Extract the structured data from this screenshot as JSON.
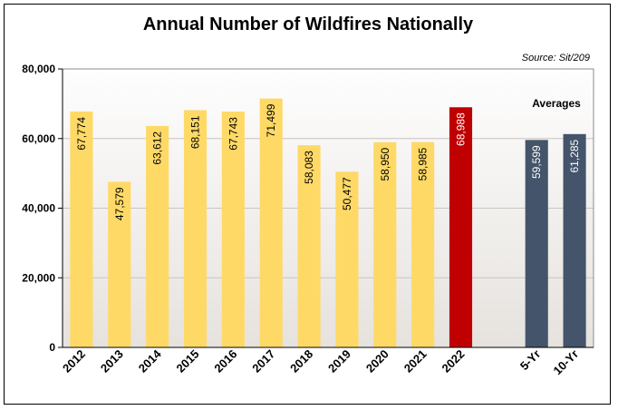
{
  "chart_data": {
    "type": "bar",
    "title": "Annual Number of Wildfires Nationally",
    "source": "Source: Sit/209",
    "annotation": "Averages",
    "ylim": [
      0,
      80000
    ],
    "yticks": [
      "0",
      "20,000",
      "40,000",
      "60,000",
      "80,000"
    ],
    "ytick_values": [
      0,
      20000,
      40000,
      60000,
      80000
    ],
    "grid": true,
    "categories": [
      "2012",
      "2013",
      "2014",
      "2015",
      "2016",
      "2017",
      "2018",
      "2019",
      "2020",
      "2021",
      "2022",
      "5-Yr",
      "10-Yr"
    ],
    "values": [
      67774,
      47579,
      63612,
      68151,
      67743,
      71499,
      58083,
      50477,
      58950,
      58985,
      68988,
      59599,
      61285
    ],
    "labels": [
      "67,774",
      "47,579",
      "63,612",
      "68,151",
      "67,743",
      "71,499",
      "58,083",
      "50,477",
      "58,950",
      "58,985",
      "68,988",
      "59,599",
      "61,285"
    ],
    "colors": [
      "#FFD966",
      "#FFD966",
      "#FFD966",
      "#FFD966",
      "#FFD966",
      "#FFD966",
      "#FFD966",
      "#FFD966",
      "#FFD966",
      "#FFD966",
      "#C00000",
      "#44546A",
      "#44546A"
    ]
  }
}
